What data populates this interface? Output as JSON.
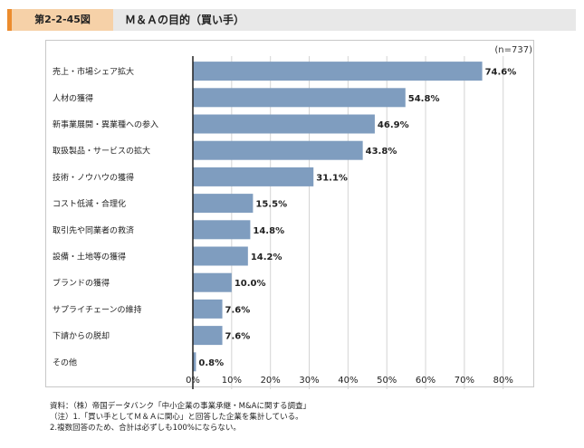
{
  "header": {
    "figure_label": "第2-2-45図",
    "title": "Ｍ＆Ａの目的（買い手）"
  },
  "chart_data": {
    "type": "bar",
    "orientation": "horizontal",
    "n_label": "(n=737)",
    "categories": [
      "売上・市場シェア拡大",
      "人材の獲得",
      "新事業展開・異業種への参入",
      "取扱製品・サービスの拡大",
      "技術・ノウハウの獲得",
      "コスト低減・合理化",
      "取引先や同業者の救済",
      "設備・土地等の獲得",
      "ブランドの獲得",
      "サプライチェーンの維持",
      "下請からの脱却",
      "その他"
    ],
    "values": [
      74.6,
      54.8,
      46.9,
      43.8,
      31.1,
      15.5,
      14.8,
      14.2,
      10.0,
      7.6,
      7.6,
      0.8
    ],
    "value_labels": [
      "74.6%",
      "54.8%",
      "46.9%",
      "43.8%",
      "31.1%",
      "15.5%",
      "14.8%",
      "14.2%",
      "10.0%",
      "7.6%",
      "7.6%",
      "0.8%"
    ],
    "x_ticks": [
      "0%",
      "10%",
      "20%",
      "30%",
      "40%",
      "50%",
      "60%",
      "70%",
      "80%"
    ],
    "xlim": [
      0,
      88
    ],
    "bar_color": "#7f9dbf",
    "grid": true
  },
  "footnotes": [
    "資料：（株）帝国データバンク「中小企業の事業承継・M&Aに関する調査」",
    "（注）1.「買い手としてＭ＆Ａに関心」と回答した企業を集計している。",
    "2.複数回答のため、合計は必ずしも100%にならない。"
  ]
}
